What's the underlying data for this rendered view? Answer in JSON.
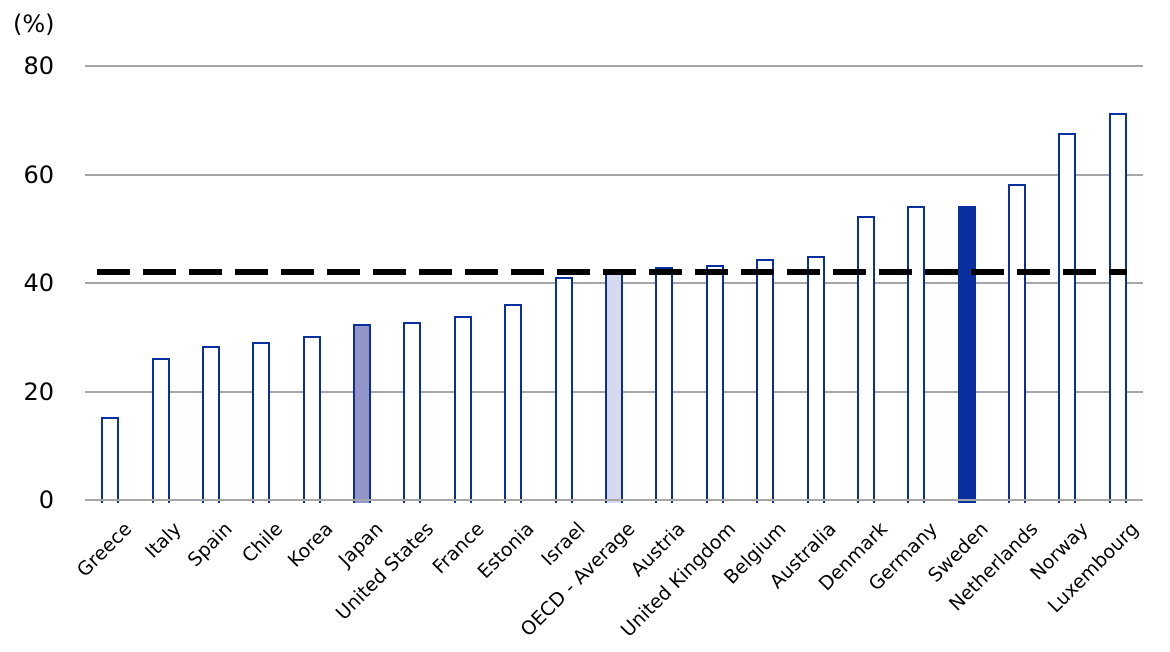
{
  "chart_data": {
    "type": "bar",
    "title": "",
    "xlabel": "",
    "ylabel": "(%)",
    "ylim": [
      0,
      80
    ],
    "yticks": [
      0,
      20,
      40,
      60,
      80
    ],
    "grid": true,
    "legend": "none",
    "categories": [
      "Greece",
      "Italy",
      "Spain",
      "Chile",
      "Korea",
      "Japan",
      "United States",
      "France",
      "Estonia",
      "Israel",
      "OECD - Average",
      "Austria",
      "United Kingdom",
      "Belgium",
      "Australia",
      "Denmark",
      "Germany",
      "Sweden",
      "Netherlands",
      "Norway",
      "Luxembourg"
    ],
    "values": [
      15.3,
      26.2,
      28.4,
      29.1,
      30.2,
      32.4,
      32.8,
      33.9,
      36.1,
      41.1,
      42.2,
      43.0,
      43.3,
      44.4,
      45.0,
      52.3,
      54.2,
      54.2,
      58.2,
      67.6,
      71.3
    ],
    "bar_outline_color": "#0a2f9f",
    "bar_default_fill": "#ffffff",
    "bar_fills": [
      null,
      null,
      null,
      null,
      null,
      "#9395c8",
      null,
      null,
      null,
      null,
      "#d6daef",
      null,
      null,
      null,
      null,
      null,
      null,
      "#0a2f9f",
      null,
      null,
      null
    ],
    "highlighted_categories": [
      "Japan",
      "OECD - Average",
      "Sweden"
    ],
    "gridline_color": "#a6a6a6",
    "reference_line": {
      "value": 42,
      "style": "dashed",
      "color": "#000000"
    }
  }
}
